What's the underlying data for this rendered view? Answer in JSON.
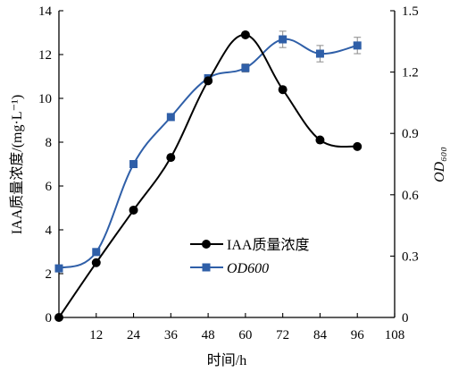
{
  "chart_data": {
    "type": "line",
    "xlabel": "时间/h",
    "ylabel_left": "IAA质量浓度/(mg·L⁻¹)",
    "ylabel_right": "OD₆₀₀",
    "x_ticks": [
      12,
      24,
      36,
      48,
      60,
      72,
      84,
      96,
      108
    ],
    "xlim": [
      0,
      108
    ],
    "ylim_left": [
      0,
      14
    ],
    "y_ticks_left": [
      0,
      2,
      4,
      6,
      8,
      10,
      12,
      14
    ],
    "ylim_right": [
      0,
      1.5
    ],
    "y_ticks_right": [
      "0",
      "0.3",
      "0.6",
      "0.9",
      "1.2",
      "1.5"
    ],
    "legend_position": "center",
    "grid": false,
    "series": [
      {
        "name": "IAA质量浓度",
        "axis": "left",
        "marker": "circle",
        "color": "#000000",
        "x": [
          0,
          12,
          24,
          36,
          48,
          60,
          72,
          84,
          96
        ],
        "y": [
          0,
          2.5,
          4.9,
          7.3,
          10.8,
          12.9,
          10.4,
          8.1,
          7.8
        ]
      },
      {
        "name": "OD600",
        "axis": "right",
        "marker": "square",
        "color": "#2f5fa8",
        "x": [
          0,
          12,
          24,
          36,
          48,
          60,
          72,
          84,
          96
        ],
        "y": [
          0.24,
          0.32,
          0.75,
          0.98,
          1.17,
          1.22,
          1.36,
          1.29,
          1.33
        ],
        "error": [
          0,
          0,
          0,
          0,
          0,
          0.02,
          0.04,
          0.04,
          0.04
        ]
      }
    ]
  }
}
